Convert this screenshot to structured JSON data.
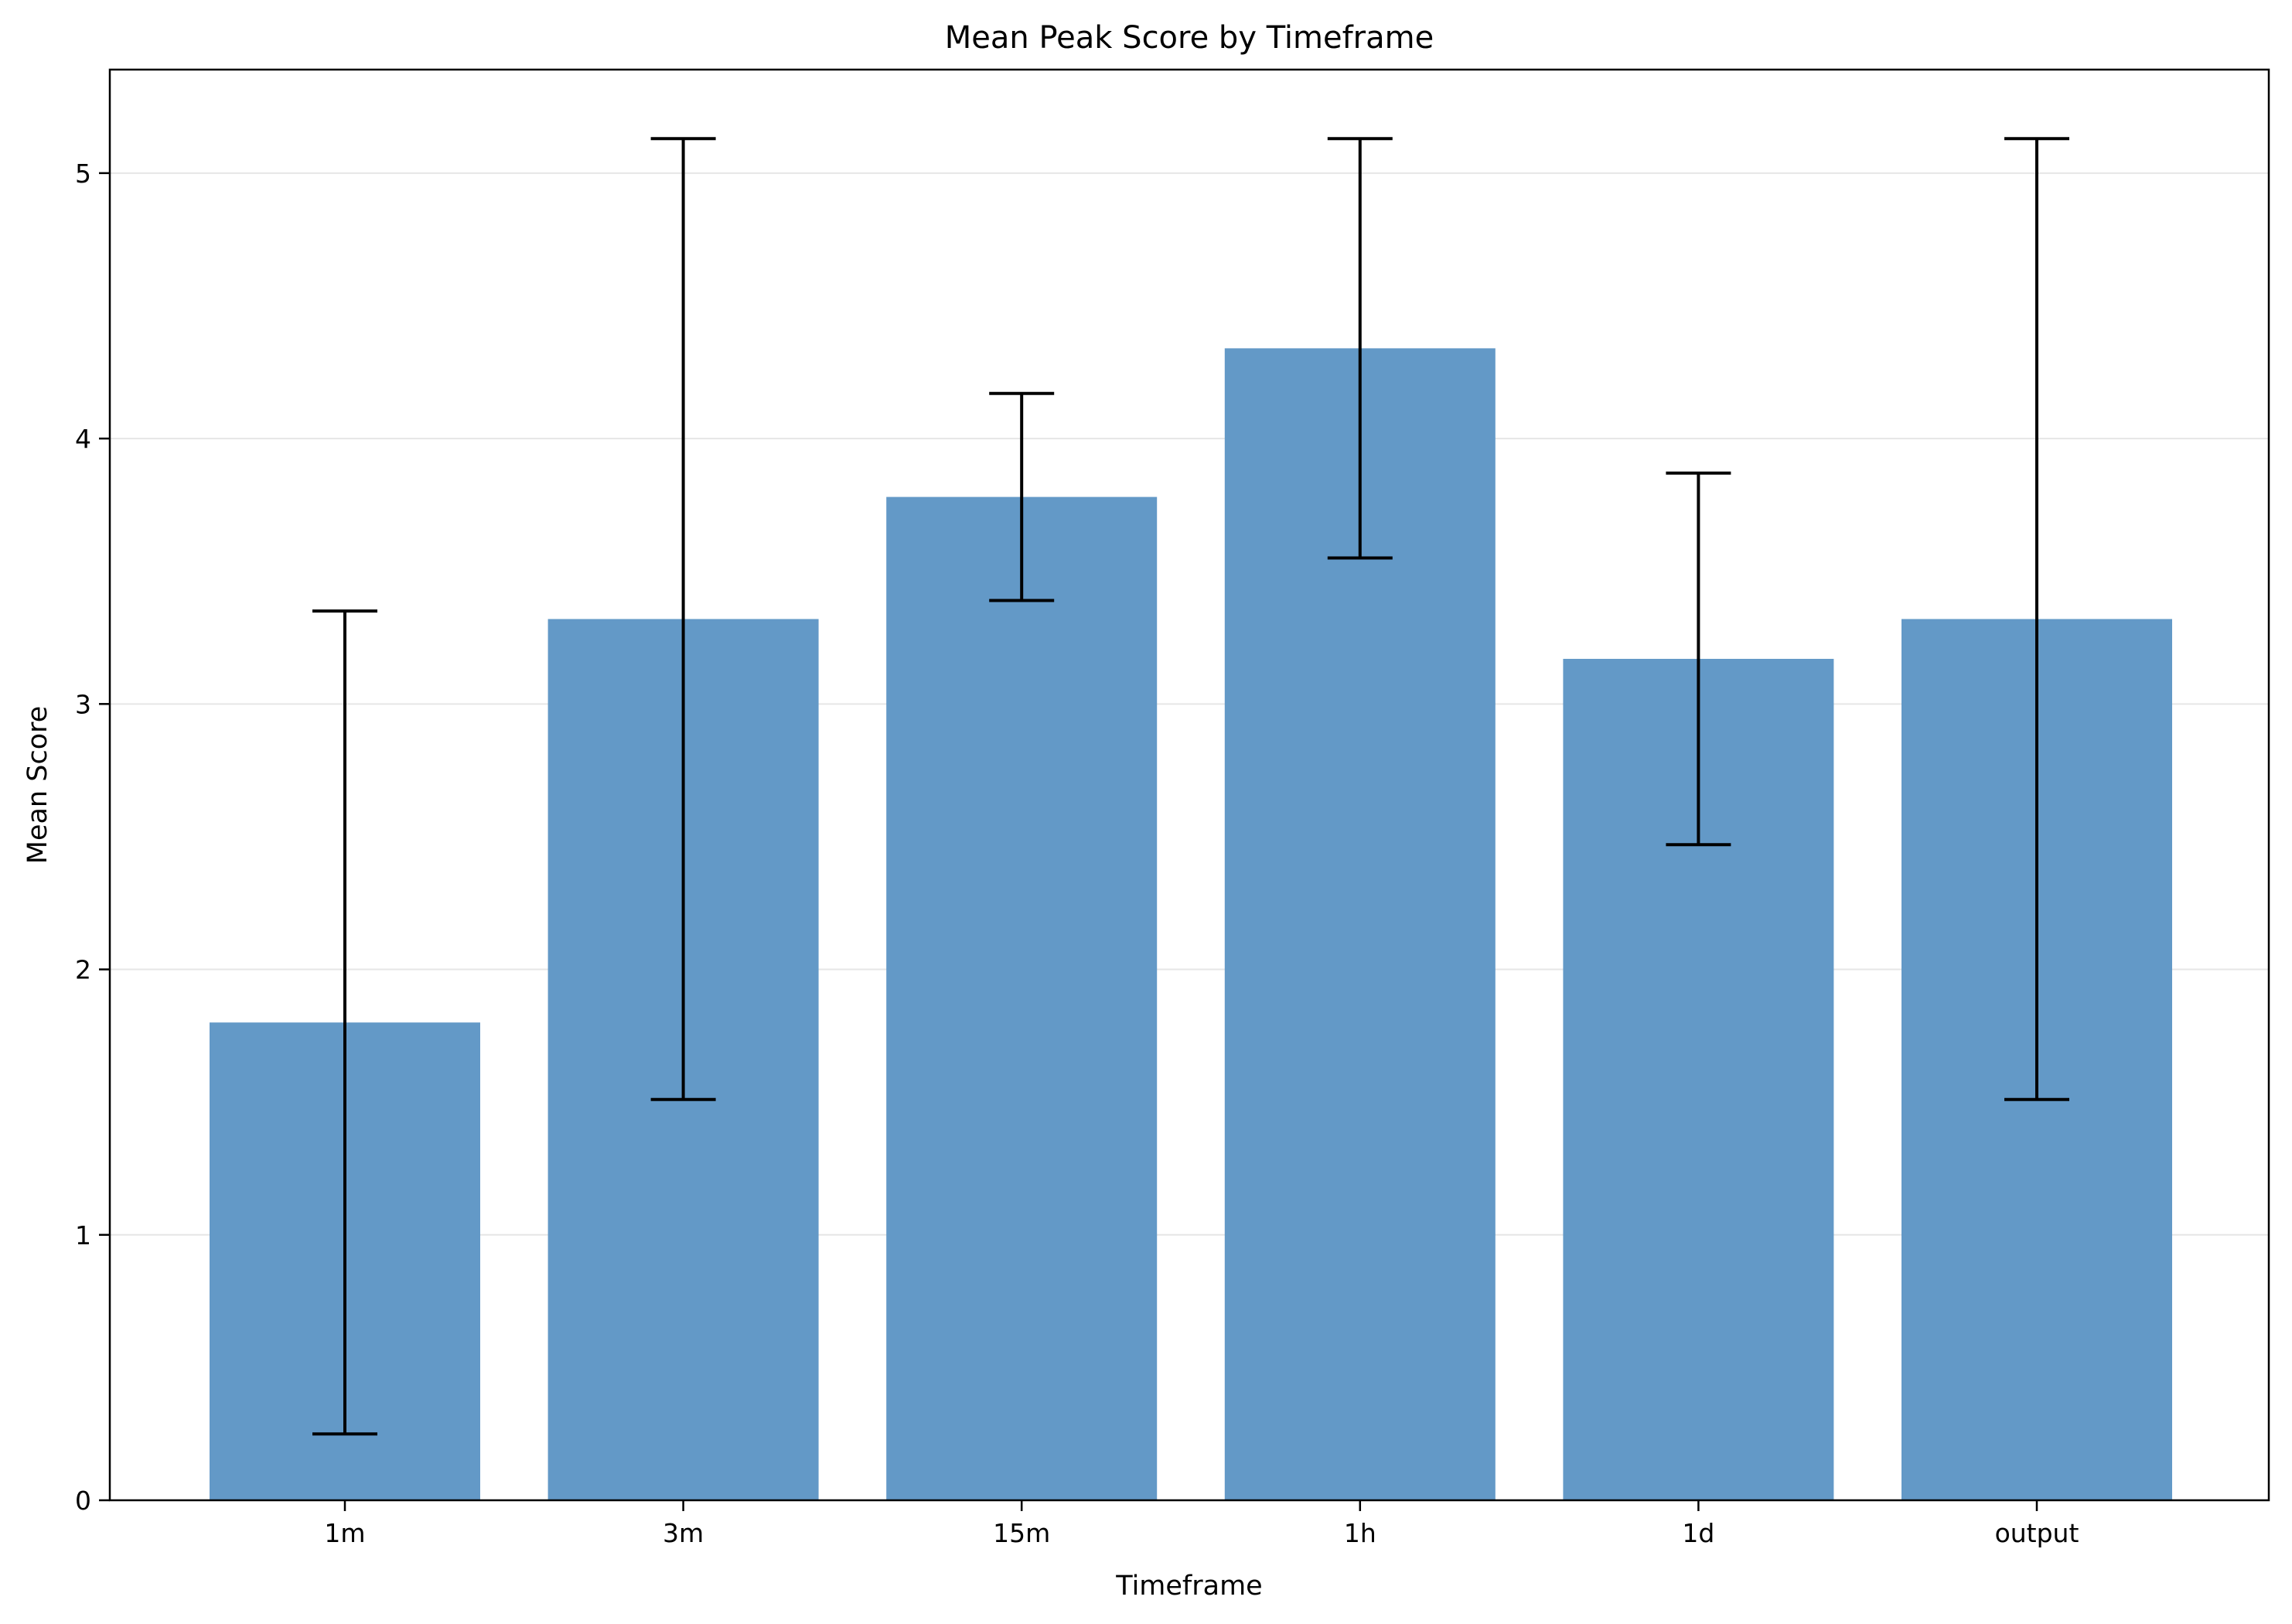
{
  "chart_data": {
    "type": "bar",
    "title": "Mean Peak Score by Timeframe",
    "xlabel": "Timeframe",
    "ylabel": "Mean Score",
    "categories": [
      "1m",
      "3m",
      "15m",
      "1h",
      "1d",
      "output"
    ],
    "values": [
      1.8,
      3.32,
      3.78,
      4.34,
      3.17,
      3.32
    ],
    "error": [
      1.55,
      1.81,
      0.39,
      0.79,
      0.7,
      1.81
    ],
    "ylim": [
      0,
      5.39
    ],
    "yticks": [
      0,
      1,
      2,
      3,
      4,
      5
    ],
    "grid": "y",
    "bar_color": "#6399c7",
    "error_color": "#000000",
    "legend": "none"
  }
}
